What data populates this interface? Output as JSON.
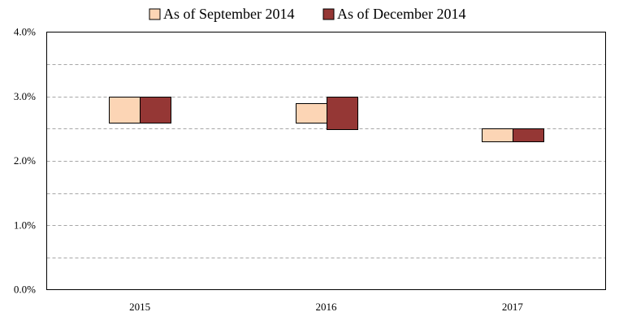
{
  "chart_data": {
    "type": "bar",
    "subtype": "floating-range",
    "categories": [
      "2015",
      "2016",
      "2017"
    ],
    "series": [
      {
        "name": "As of September 2014",
        "color": "#fcd5b5",
        "ranges": [
          [
            2.6,
            3.0
          ],
          [
            2.6,
            2.9
          ],
          [
            2.3,
            2.5
          ]
        ]
      },
      {
        "name": "As of December 2014",
        "color": "#953735",
        "ranges": [
          [
            2.6,
            3.0
          ],
          [
            2.5,
            3.0
          ],
          [
            2.3,
            2.5
          ]
        ]
      }
    ],
    "yticks": [
      "0.0%",
      "1.0%",
      "2.0%",
      "3.0%",
      "4.0%"
    ],
    "ylim": [
      0,
      4
    ],
    "grid": "horizontal dashed",
    "legend_position": "top-center",
    "title": "",
    "xlabel": "",
    "ylabel": ""
  }
}
